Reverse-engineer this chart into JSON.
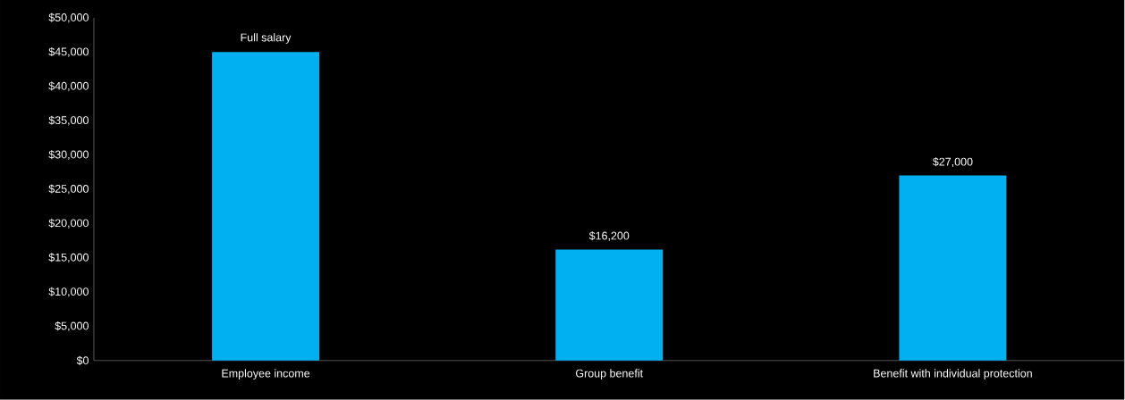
{
  "chart_data": {
    "type": "bar",
    "categories": [
      "Employee income",
      "Group benefit",
      "Benefit with individual protection"
    ],
    "values": [
      45000,
      16200,
      27000
    ],
    "value_labels": [
      "Full salary",
      "$16,200",
      "$27,000"
    ],
    "color": "#00b0f0",
    "ylim": [
      0,
      50000
    ],
    "yticks": [
      {
        "value": 0,
        "label": "$0"
      },
      {
        "value": 5000,
        "label": "$5,000"
      },
      {
        "value": 10000,
        "label": "$10,000"
      },
      {
        "value": 15000,
        "label": "$15,000"
      },
      {
        "value": 20000,
        "label": "$20,000"
      },
      {
        "value": 25000,
        "label": "$25,000"
      },
      {
        "value": 30000,
        "label": "$30,000"
      },
      {
        "value": 35000,
        "label": "$35,000"
      },
      {
        "value": 40000,
        "label": "$40,000"
      },
      {
        "value": 45000,
        "label": "$45,000"
      },
      {
        "value": 50000,
        "label": "$50,000"
      }
    ]
  }
}
